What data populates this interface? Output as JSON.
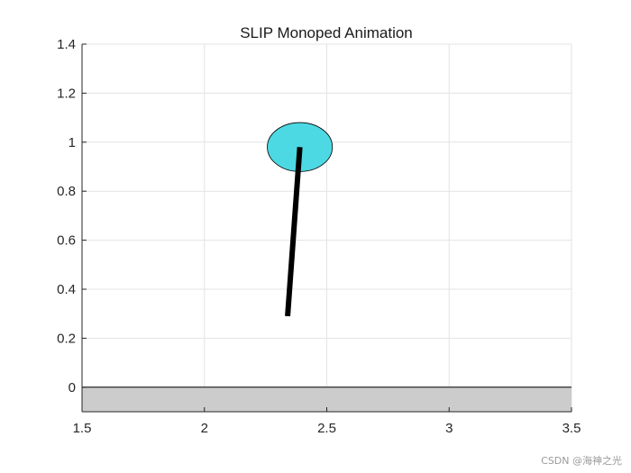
{
  "chart_data": {
    "type": "scatter",
    "title": "SLIP Monoped Animation",
    "xlabel": "",
    "ylabel": "",
    "xlim": [
      1.5,
      3.5
    ],
    "ylim": [
      -0.1,
      1.4
    ],
    "xticks": [
      1.5,
      2,
      2.5,
      3,
      3.5
    ],
    "xtick_labels": [
      "1.5",
      "2",
      "2.5",
      "3",
      "3.5"
    ],
    "yticks": [
      0,
      0.2,
      0.4,
      0.6,
      0.8,
      1,
      1.2,
      1.4
    ],
    "ytick_labels": [
      "0",
      "0.2",
      "0.4",
      "0.6",
      "0.8",
      "1",
      "1.2",
      "1.4"
    ],
    "grid": true,
    "ground": {
      "y_top": 0,
      "y_bottom": -0.1,
      "color": "#cccccc"
    },
    "body": {
      "x": 2.39,
      "y": 0.98,
      "radius": 0.1,
      "color": "#4dd9e3"
    },
    "leg": {
      "x0": 2.39,
      "y0": 0.98,
      "x1": 2.34,
      "y1": 0.29,
      "color": "#000000"
    }
  },
  "watermark": "CSDN @海神之光"
}
